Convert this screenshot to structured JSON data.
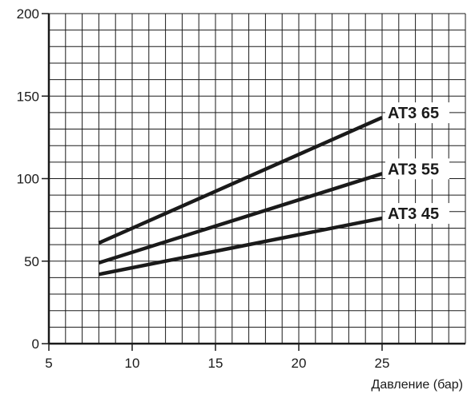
{
  "chart_data": {
    "type": "line",
    "title": "",
    "xlabel": "Давление (бар)",
    "ylabel": "",
    "xlim": [
      5,
      30
    ],
    "ylim": [
      0,
      200
    ],
    "x_ticks": [
      5,
      10,
      15,
      20,
      25
    ],
    "y_ticks": [
      0,
      50,
      100,
      150,
      200
    ],
    "x_tick_labels": [
      "5",
      "10",
      "15",
      "20",
      "25"
    ],
    "y_tick_labels": [
      "0",
      "50",
      "100",
      "150",
      "200"
    ],
    "grid": true,
    "legend": "none",
    "series": [
      {
        "name": "AT3 65",
        "x": [
          8,
          25
        ],
        "y": [
          61,
          137
        ]
      },
      {
        "name": "AT3 55",
        "x": [
          8,
          25
        ],
        "y": [
          49,
          103
        ]
      },
      {
        "name": "AT3 45",
        "x": [
          8,
          25
        ],
        "y": [
          42,
          76
        ]
      }
    ],
    "colors": {
      "line": "#1a1a1a",
      "grid": "#1a1a1a",
      "background": "#ffffff"
    }
  }
}
